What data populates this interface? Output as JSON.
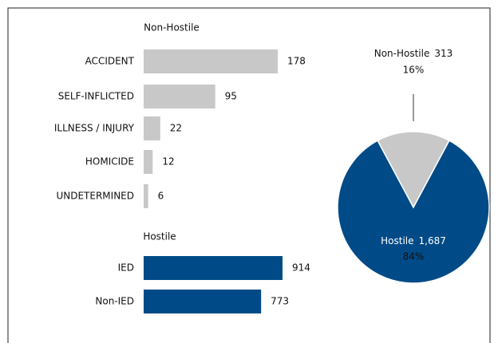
{
  "chart_data": [
    {
      "type": "bar",
      "title": "Non-Hostile",
      "categories": [
        "ACCIDENT",
        "SELF-INFLICTED",
        "ILLNESS / INJURY",
        "HOMICIDE",
        "UNDETERMINED"
      ],
      "values": [
        178,
        95,
        22,
        12,
        6
      ],
      "color": "#c8c8c8"
    },
    {
      "type": "bar",
      "title": "Hostile",
      "categories": [
        "IED",
        "Non-IED"
      ],
      "values": [
        914,
        773
      ],
      "color": "#004b87"
    },
    {
      "type": "pie",
      "categories": [
        "Non-Hostile",
        "Hostile"
      ],
      "values": [
        313,
        1687
      ],
      "value_labels": [
        "313",
        "1,687"
      ],
      "percents": [
        16,
        84
      ],
      "percent_labels": [
        "16%",
        "84%"
      ],
      "colors": [
        "#c8c8c8",
        "#004b87"
      ]
    }
  ]
}
